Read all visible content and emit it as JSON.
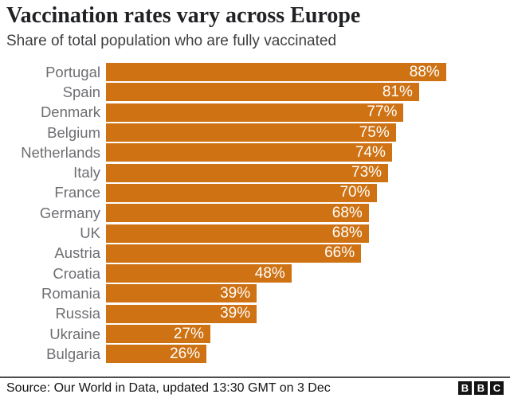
{
  "header": {
    "title": "Vaccination rates vary across Europe",
    "subtitle": "Share of total population who are fully vaccinated"
  },
  "chart_data": {
    "type": "bar",
    "orientation": "horizontal",
    "title": "Vaccination rates vary across Europe",
    "subtitle": "Share of total population who are fully vaccinated",
    "xlabel": "",
    "ylabel": "",
    "xlim": [
      0,
      100
    ],
    "grid": false,
    "legend": false,
    "categories": [
      "Portugal",
      "Spain",
      "Denmark",
      "Belgium",
      "Netherlands",
      "Italy",
      "France",
      "Germany",
      "UK",
      "Austria",
      "Croatia",
      "Romania",
      "Russia",
      "Ukraine",
      "Bulgaria"
    ],
    "values": [
      88,
      81,
      77,
      75,
      74,
      73,
      70,
      68,
      68,
      66,
      48,
      39,
      39,
      27,
      26
    ],
    "value_labels": [
      "88%",
      "81%",
      "77%",
      "75%",
      "74%",
      "73%",
      "70%",
      "68%",
      "68%",
      "66%",
      "48%",
      "39%",
      "39%",
      "27%",
      "26%"
    ],
    "bar_color": "#CE7213",
    "category_label_color": "#6E6E73",
    "value_text_color": "#FFFFFF"
  },
  "footer": {
    "source": "Source: Our World in Data, updated 13:30 GMT on 3 Dec",
    "logo_letters": [
      "B",
      "B",
      "C"
    ]
  },
  "colors": {
    "accent": "#CE7213",
    "title_text": "#202124",
    "subtitle_text": "#3E3E42",
    "footer_rule": "#4D4D4D",
    "logo_background": "#141414"
  }
}
